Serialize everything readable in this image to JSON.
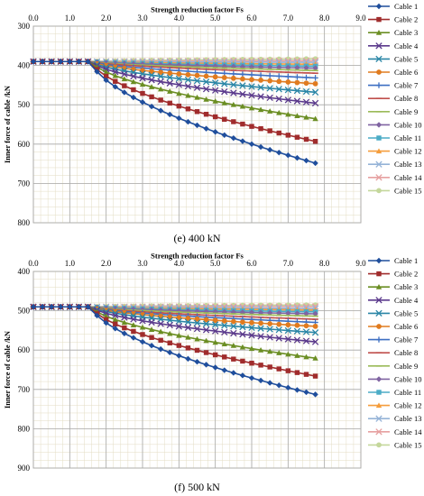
{
  "colors": {
    "cable_1": "#1f4e9c",
    "cable_2": "#a02c2c",
    "cable_3": "#6b8e23",
    "cable_4": "#5b3a8c",
    "cable_5": "#2a86a6",
    "cable_6": "#e07b1f",
    "cable_7": "#3d6fc2",
    "cable_8": "#c0504d",
    "cable_9": "#9bbb59",
    "cable_10": "#8064a2",
    "cable_11": "#4bacc6",
    "cable_12": "#f59d3c",
    "cable_13": "#95b3d7",
    "cable_14": "#e6a0a0",
    "cable_15": "#c4d79b"
  },
  "chart_data": [
    {
      "type": "line",
      "caption": "(e) 400 kN",
      "xlabel": "Strength reduction factor Fs",
      "ylabel": "Inner force of cable /kN",
      "xlim": [
        0,
        9
      ],
      "ylim": [
        300,
        800
      ],
      "x_ticks": [
        "0.0",
        "1.0",
        "2.0",
        "3.0",
        "4.0",
        "5.0",
        "6.0",
        "7.0",
        "8.0",
        "9.0"
      ],
      "y_ticks": [
        "300",
        "400",
        "500",
        "600",
        "700",
        "800"
      ],
      "y_inverted": true,
      "grid": true,
      "legend": "right",
      "series": [
        {
          "name": "Cable 1",
          "marker": "diamond",
          "final": 651
        },
        {
          "name": "Cable 2",
          "marker": "square",
          "final": 595
        },
        {
          "name": "Cable 3",
          "marker": "triangle",
          "final": 537
        },
        {
          "name": "Cable 4",
          "marker": "x",
          "final": 497
        },
        {
          "name": "Cable 5",
          "marker": "x",
          "final": 469
        },
        {
          "name": "Cable 6",
          "marker": "circle",
          "final": 447
        },
        {
          "name": "Cable 7",
          "marker": "plus",
          "final": 432
        },
        {
          "name": "Cable 8",
          "marker": "dash",
          "final": 420
        },
        {
          "name": "Cable 9",
          "marker": "dash",
          "final": 413
        },
        {
          "name": "Cable 10",
          "marker": "diamond",
          "final": 407
        },
        {
          "name": "Cable 11",
          "marker": "square",
          "final": 402
        },
        {
          "name": "Cable 12",
          "marker": "triangle",
          "final": 397
        },
        {
          "name": "Cable 13",
          "marker": "x",
          "final": 392
        },
        {
          "name": "Cable 14",
          "marker": "x",
          "final": 388
        },
        {
          "name": "Cable 15",
          "marker": "circle",
          "final": 383
        }
      ]
    },
    {
      "type": "line",
      "caption": "(f) 500 kN",
      "xlabel": "Strength reduction factor Fs",
      "ylabel": "Inner force of cable /kN",
      "xlim": [
        0,
        9
      ],
      "ylim": [
        400,
        900
      ],
      "x_ticks": [
        "0.0",
        "1.0",
        "2.0",
        "3.0",
        "4.0",
        "5.0",
        "6.0",
        "7.0",
        "8.0",
        "9.0"
      ],
      "y_ticks": [
        "400",
        "500",
        "600",
        "700",
        "800",
        "900"
      ],
      "y_inverted": true,
      "grid": true,
      "legend": "right",
      "series": [
        {
          "name": "Cable 1",
          "marker": "diamond",
          "final": 715
        },
        {
          "name": "Cable 2",
          "marker": "square",
          "final": 668
        },
        {
          "name": "Cable 3",
          "marker": "triangle",
          "final": 622
        },
        {
          "name": "Cable 4",
          "marker": "x",
          "final": 580
        },
        {
          "name": "Cable 5",
          "marker": "x",
          "final": 556
        },
        {
          "name": "Cable 6",
          "marker": "circle",
          "final": 540
        },
        {
          "name": "Cable 7",
          "marker": "plus",
          "final": 530
        },
        {
          "name": "Cable 8",
          "marker": "dash",
          "final": 522
        },
        {
          "name": "Cable 9",
          "marker": "dash",
          "final": 514
        },
        {
          "name": "Cable 10",
          "marker": "diamond",
          "final": 508
        },
        {
          "name": "Cable 11",
          "marker": "square",
          "final": 503
        },
        {
          "name": "Cable 12",
          "marker": "triangle",
          "final": 498
        },
        {
          "name": "Cable 13",
          "marker": "x",
          "final": 494
        },
        {
          "name": "Cable 14",
          "marker": "x",
          "final": 489
        },
        {
          "name": "Cable 15",
          "marker": "circle",
          "final": 485
        }
      ]
    }
  ]
}
